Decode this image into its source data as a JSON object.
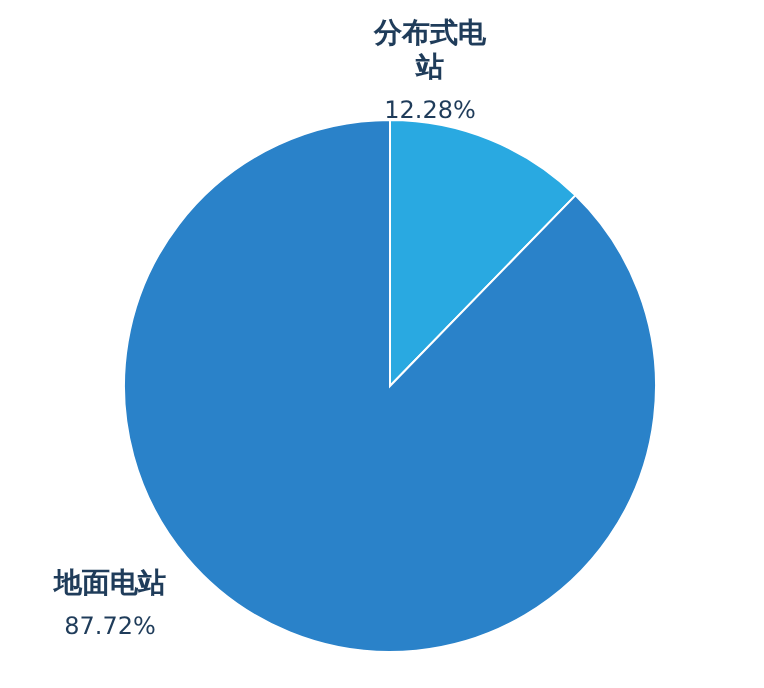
{
  "chart_data": {
    "type": "pie",
    "categories": [
      "分布式电站",
      "地面电站"
    ],
    "values": [
      12.28,
      87.72
    ],
    "colors": [
      "#29a9e1",
      "#2a82c9"
    ],
    "value_labels": [
      "12.28%",
      "87.72%"
    ]
  }
}
